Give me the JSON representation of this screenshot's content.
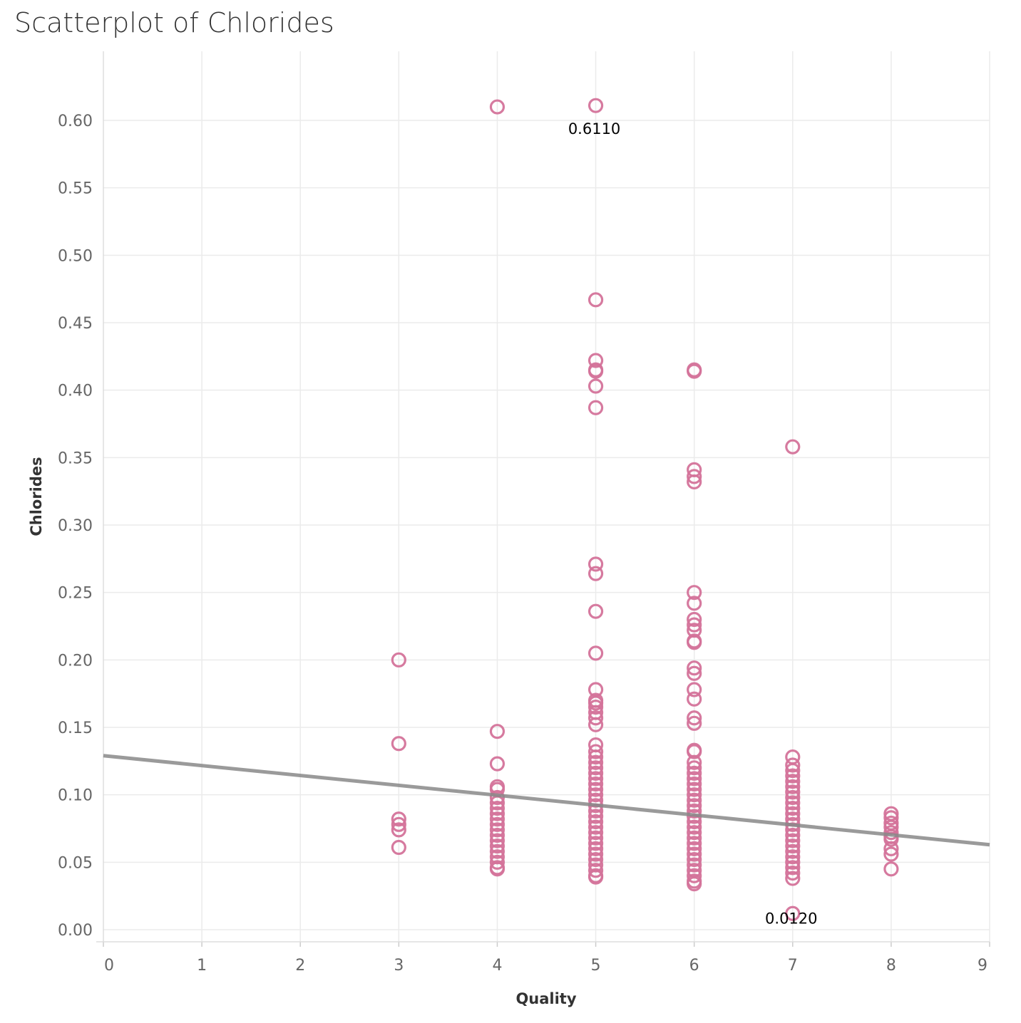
{
  "chart_data": {
    "type": "scatter",
    "title": "Scatterplot of Chlorides",
    "xlabel": "Quality",
    "ylabel": "Chlorides",
    "xlim": [
      0,
      9
    ],
    "ylim": [
      0,
      0.62
    ],
    "x_ticks": [
      "0",
      "1",
      "2",
      "3",
      "4",
      "5",
      "6",
      "7",
      "8",
      "9"
    ],
    "y_ticks": [
      "0.00",
      "0.05",
      "0.10",
      "0.15",
      "0.20",
      "0.25",
      "0.30",
      "0.35",
      "0.40",
      "0.45",
      "0.50",
      "0.55",
      "0.60"
    ],
    "grid": true,
    "marker": "hollow-circle",
    "marker_color": "#d4739a",
    "trend_line": {
      "color": "#888888",
      "start": [
        0,
        0.129
      ],
      "end": [
        9,
        0.063
      ]
    },
    "annotations": [
      {
        "text": "0.6110",
        "x": 5,
        "y": 0.611
      },
      {
        "text": "0.0120",
        "x": 7,
        "y": 0.012
      }
    ],
    "series": [
      {
        "x": 3,
        "y": [
          0.2,
          0.138,
          0.082,
          0.078,
          0.074,
          0.061
        ]
      },
      {
        "x": 4,
        "y": [
          0.61,
          0.147,
          0.123,
          0.106,
          0.104,
          0.098,
          0.094,
          0.09,
          0.086,
          0.082,
          0.078,
          0.074,
          0.07,
          0.066,
          0.062,
          0.058,
          0.054,
          0.05,
          0.046,
          0.045
        ]
      },
      {
        "x": 5,
        "y": [
          0.611,
          0.467,
          0.422,
          0.415,
          0.414,
          0.403,
          0.387,
          0.271,
          0.264,
          0.236,
          0.205,
          0.178,
          0.17,
          0.168,
          0.165,
          0.161,
          0.157,
          0.152,
          0.137,
          0.132,
          0.128,
          0.124,
          0.12,
          0.116,
          0.112,
          0.108,
          0.104,
          0.1,
          0.096,
          0.092,
          0.088,
          0.084,
          0.08,
          0.076,
          0.072,
          0.068,
          0.064,
          0.06,
          0.056,
          0.052,
          0.048,
          0.044,
          0.04,
          0.039
        ]
      },
      {
        "x": 6,
        "y": [
          0.415,
          0.414,
          0.341,
          0.336,
          0.332,
          0.25,
          0.242,
          0.23,
          0.226,
          0.222,
          0.214,
          0.213,
          0.194,
          0.19,
          0.178,
          0.171,
          0.157,
          0.153,
          0.133,
          0.132,
          0.124,
          0.12,
          0.116,
          0.112,
          0.108,
          0.104,
          0.1,
          0.096,
          0.092,
          0.088,
          0.084,
          0.08,
          0.076,
          0.072,
          0.068,
          0.064,
          0.06,
          0.056,
          0.052,
          0.048,
          0.044,
          0.04,
          0.036,
          0.034
        ]
      },
      {
        "x": 7,
        "y": [
          0.358,
          0.128,
          0.122,
          0.118,
          0.114,
          0.11,
          0.106,
          0.102,
          0.098,
          0.094,
          0.09,
          0.086,
          0.082,
          0.078,
          0.074,
          0.07,
          0.066,
          0.062,
          0.058,
          0.054,
          0.05,
          0.046,
          0.042,
          0.038,
          0.012
        ]
      },
      {
        "x": 8,
        "y": [
          0.086,
          0.083,
          0.079,
          0.076,
          0.072,
          0.069,
          0.067,
          0.06,
          0.056,
          0.045
        ]
      }
    ]
  }
}
